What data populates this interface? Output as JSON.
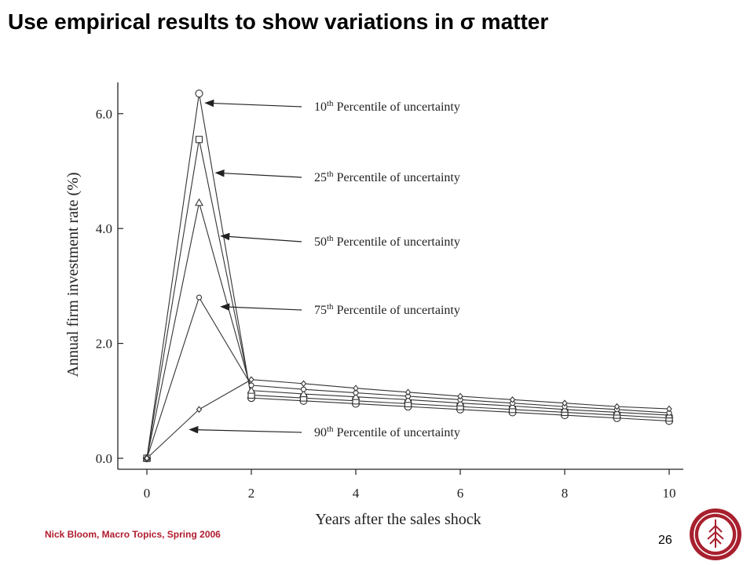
{
  "slide": {
    "title": "Use empirical results to show variations in σ matter",
    "footer": "Nick Bloom, Macro Topics, Spring 2006",
    "page_number": "26",
    "logo": "university-seal-icon",
    "accent_color": "#b01c2e"
  },
  "chart_data": {
    "type": "line",
    "title": "",
    "xlabel": "Years after the sales shock",
    "ylabel": "Annual firm investment rate (%)",
    "xlim": [
      0,
      10
    ],
    "ylim": [
      0,
      6.5
    ],
    "xticks": [
      "0",
      "2",
      "4",
      "6",
      "8",
      "10"
    ],
    "yticks": [
      "0.0",
      "2.0",
      "4.0",
      "6.0"
    ],
    "grid": false,
    "x": [
      0,
      1,
      2,
      3,
      4,
      5,
      6,
      7,
      8,
      9,
      10
    ],
    "series": [
      {
        "name": "10th Percentile of uncertainty",
        "marker": "circle",
        "values": [
          0,
          6.35,
          1.05,
          1.0,
          0.95,
          0.9,
          0.85,
          0.8,
          0.75,
          0.7,
          0.65
        ]
      },
      {
        "name": "25th Percentile of uncertainty",
        "marker": "square",
        "values": [
          0,
          5.55,
          1.1,
          1.05,
          1.0,
          0.95,
          0.9,
          0.85,
          0.8,
          0.75,
          0.7
        ]
      },
      {
        "name": "50th Percentile of uncertainty",
        "marker": "triangle",
        "values": [
          0,
          4.45,
          1.18,
          1.12,
          1.07,
          1.02,
          0.96,
          0.91,
          0.85,
          0.8,
          0.75
        ]
      },
      {
        "name": "75th Percentile of uncertainty",
        "marker": "small-circle",
        "values": [
          0,
          2.8,
          1.27,
          1.2,
          1.14,
          1.08,
          1.02,
          0.96,
          0.9,
          0.85,
          0.79
        ]
      },
      {
        "name": "90th Percentile of uncertainty",
        "marker": "diamond",
        "values": [
          0,
          0.85,
          1.37,
          1.3,
          1.22,
          1.15,
          1.08,
          1.02,
          0.96,
          0.9,
          0.86
        ]
      }
    ],
    "annotations": [
      {
        "ordinal": "10",
        "suffix": "th",
        "rest": " Percentile of uncertainty",
        "series": 0,
        "x": 1,
        "y": 6.35
      },
      {
        "ordinal": "25",
        "suffix": "th",
        "rest": " Percentile of uncertainty",
        "series": 1,
        "x": 1.2,
        "y": 4.97
      },
      {
        "ordinal": "50",
        "suffix": "th",
        "rest": " Percentile of uncertainty",
        "series": 2,
        "x": 1.3,
        "y": 3.87
      },
      {
        "ordinal": "75",
        "suffix": "th",
        "rest": " Percentile of uncertainty",
        "series": 3,
        "x": 1.3,
        "y": 2.64
      },
      {
        "ordinal": "90",
        "suffix": "th",
        "rest": " Percentile of uncertainty",
        "series": 4,
        "x": 0.7,
        "y": 0.5
      }
    ]
  }
}
